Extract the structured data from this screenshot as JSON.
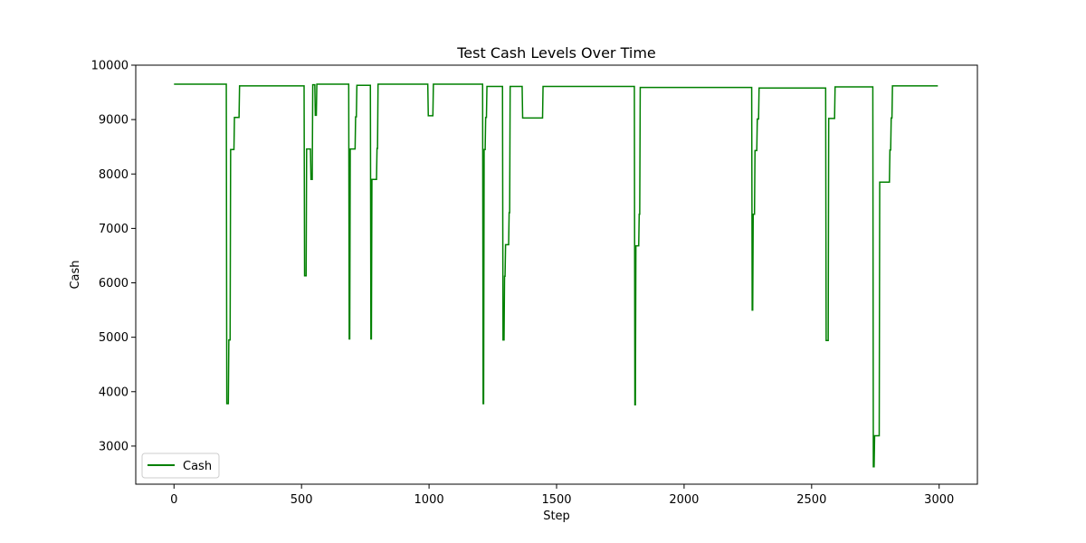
{
  "chart_data": {
    "type": "line",
    "title": "Test Cash Levels Over Time",
    "xlabel": "Step",
    "ylabel": "Cash",
    "xlim": [
      -150,
      3150
    ],
    "ylim": [
      2300,
      10000
    ],
    "xticks": [
      0,
      500,
      1000,
      1500,
      2000,
      2500,
      3000
    ],
    "yticks": [
      3000,
      4000,
      5000,
      6000,
      7000,
      8000,
      9000,
      10000
    ],
    "grid": false,
    "legend": {
      "position": "bottom-left",
      "entries": [
        "Cash"
      ]
    },
    "colors": {
      "Cash": "#008000"
    },
    "series": [
      {
        "name": "Cash",
        "step_points": [
          [
            0,
            9650
          ],
          [
            205,
            9650
          ],
          [
            207,
            3780
          ],
          [
            213,
            3780
          ],
          [
            215,
            4950
          ],
          [
            220,
            4950
          ],
          [
            222,
            8450
          ],
          [
            235,
            8450
          ],
          [
            237,
            9040
          ],
          [
            255,
            9040
          ],
          [
            257,
            9620
          ],
          [
            510,
            9620
          ],
          [
            512,
            6130
          ],
          [
            518,
            6130
          ],
          [
            520,
            8460
          ],
          [
            535,
            8460
          ],
          [
            537,
            7900
          ],
          [
            542,
            7900
          ],
          [
            544,
            9640
          ],
          [
            552,
            9640
          ],
          [
            554,
            9080
          ],
          [
            558,
            9080
          ],
          [
            560,
            9650
          ],
          [
            685,
            9650
          ],
          [
            687,
            4970
          ],
          [
            689,
            4970
          ],
          [
            691,
            8460
          ],
          [
            710,
            8460
          ],
          [
            712,
            9050
          ],
          [
            715,
            9050
          ],
          [
            717,
            9630
          ],
          [
            770,
            9630
          ],
          [
            772,
            4970
          ],
          [
            774,
            4970
          ],
          [
            776,
            7900
          ],
          [
            794,
            7900
          ],
          [
            796,
            8470
          ],
          [
            798,
            8470
          ],
          [
            800,
            9650
          ],
          [
            995,
            9650
          ],
          [
            997,
            9070
          ],
          [
            1015,
            9070
          ],
          [
            1017,
            9650
          ],
          [
            1210,
            9650
          ],
          [
            1212,
            3780
          ],
          [
            1214,
            3780
          ],
          [
            1216,
            8450
          ],
          [
            1220,
            8450
          ],
          [
            1222,
            9040
          ],
          [
            1225,
            9040
          ],
          [
            1227,
            9610
          ],
          [
            1288,
            9610
          ],
          [
            1290,
            4950
          ],
          [
            1294,
            4950
          ],
          [
            1296,
            6120
          ],
          [
            1298,
            6120
          ],
          [
            1300,
            6700
          ],
          [
            1312,
            6700
          ],
          [
            1314,
            7290
          ],
          [
            1316,
            7290
          ],
          [
            1318,
            9610
          ],
          [
            1365,
            9610
          ],
          [
            1367,
            9030
          ],
          [
            1445,
            9030
          ],
          [
            1447,
            9610
          ],
          [
            1805,
            9610
          ],
          [
            1807,
            3760
          ],
          [
            1809,
            3760
          ],
          [
            1811,
            6680
          ],
          [
            1822,
            6680
          ],
          [
            1824,
            7260
          ],
          [
            1826,
            7260
          ],
          [
            1828,
            9590
          ],
          [
            2265,
            9590
          ],
          [
            2267,
            5500
          ],
          [
            2269,
            5500
          ],
          [
            2271,
            7260
          ],
          [
            2276,
            7260
          ],
          [
            2278,
            8430
          ],
          [
            2285,
            8430
          ],
          [
            2287,
            9010
          ],
          [
            2292,
            9010
          ],
          [
            2294,
            9580
          ],
          [
            2555,
            9580
          ],
          [
            2557,
            4940
          ],
          [
            2565,
            4940
          ],
          [
            2567,
            9020
          ],
          [
            2590,
            9020
          ],
          [
            2592,
            9600
          ],
          [
            2740,
            9600
          ],
          [
            2742,
            2620
          ],
          [
            2745,
            2620
          ],
          [
            2747,
            3190
          ],
          [
            2765,
            3190
          ],
          [
            2767,
            7850
          ],
          [
            2805,
            7850
          ],
          [
            2807,
            8440
          ],
          [
            2810,
            8440
          ],
          [
            2812,
            9030
          ],
          [
            2815,
            9030
          ],
          [
            2817,
            9620
          ],
          [
            2995,
            9620
          ]
        ]
      }
    ]
  }
}
